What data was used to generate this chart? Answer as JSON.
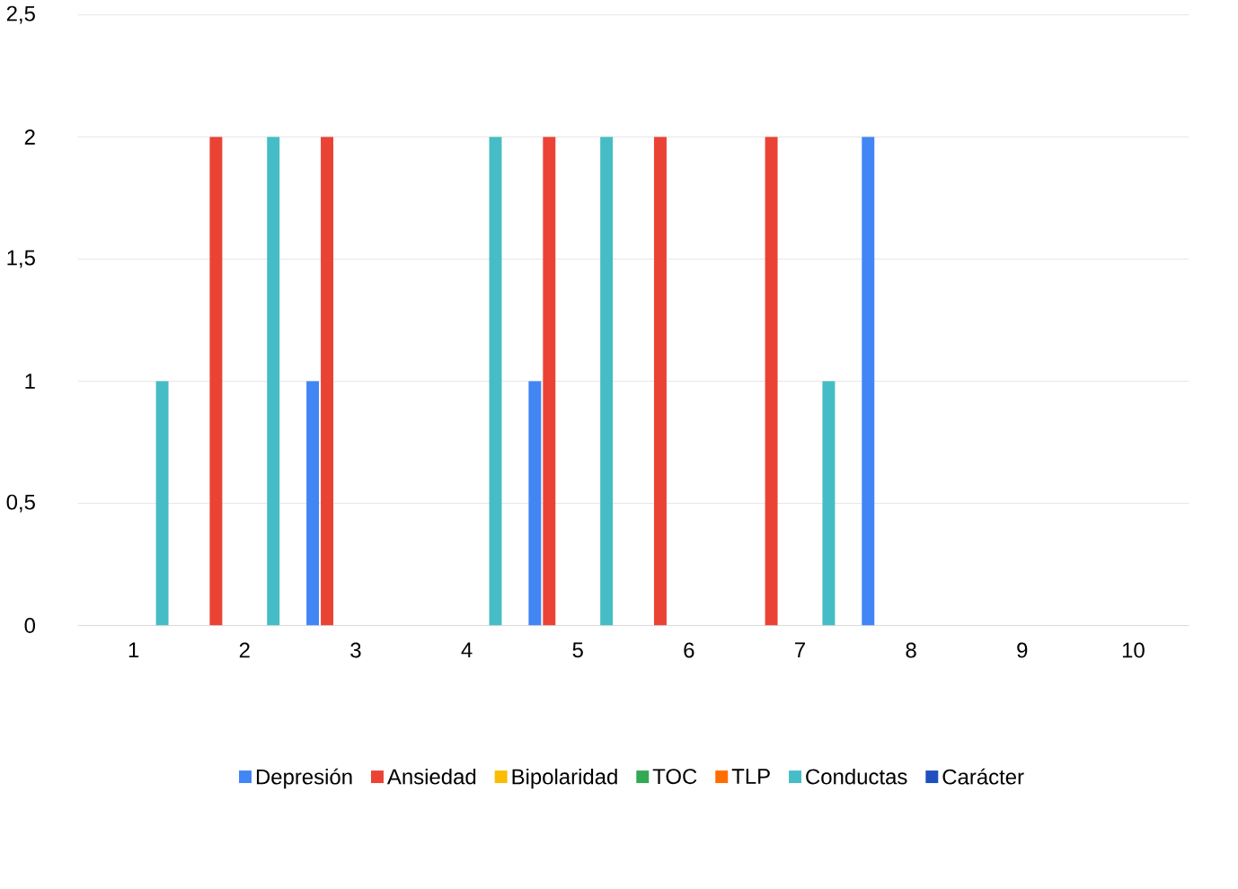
{
  "chart_data": {
    "type": "bar",
    "categories": [
      "1",
      "2",
      "3",
      "4",
      "5",
      "6",
      "7",
      "8",
      "9",
      "10"
    ],
    "series": [
      {
        "name": "Depresión",
        "color": "#4285f4",
        "values": [
          0,
          0,
          1,
          0,
          1,
          0,
          0,
          2,
          0,
          0
        ]
      },
      {
        "name": "Ansiedad",
        "color": "#ea4335",
        "values": [
          0,
          2,
          2,
          0,
          2,
          2,
          2,
          0,
          0,
          0
        ]
      },
      {
        "name": "Bipolaridad",
        "color": "#fbbc04",
        "values": [
          0,
          0,
          0,
          0,
          0,
          0,
          0,
          0,
          0,
          0
        ]
      },
      {
        "name": "TOC",
        "color": "#34a853",
        "values": [
          0,
          0,
          0,
          0,
          0,
          0,
          0,
          0,
          0,
          0
        ]
      },
      {
        "name": "TLP",
        "color": "#ff6d01",
        "values": [
          0,
          0,
          0,
          0,
          0,
          0,
          0,
          0,
          0,
          0
        ]
      },
      {
        "name": "Conductas",
        "color": "#46bdc6",
        "values": [
          1,
          2,
          0,
          2,
          2,
          0,
          1,
          0,
          0,
          0
        ]
      },
      {
        "name": "Carácter",
        "color": "#1f4fbf",
        "values": [
          0,
          0,
          0,
          0,
          0,
          0,
          0,
          0,
          0,
          0
        ]
      }
    ],
    "ylim": [
      0,
      2.5
    ],
    "yticks": [
      0,
      {
        "value": 0.5,
        "label": "0,5"
      },
      1,
      {
        "value": 1.5,
        "label": "1,5"
      },
      2,
      {
        "value": 2.5,
        "label": "2,5"
      }
    ],
    "grid": "y",
    "legend": "bottom"
  }
}
